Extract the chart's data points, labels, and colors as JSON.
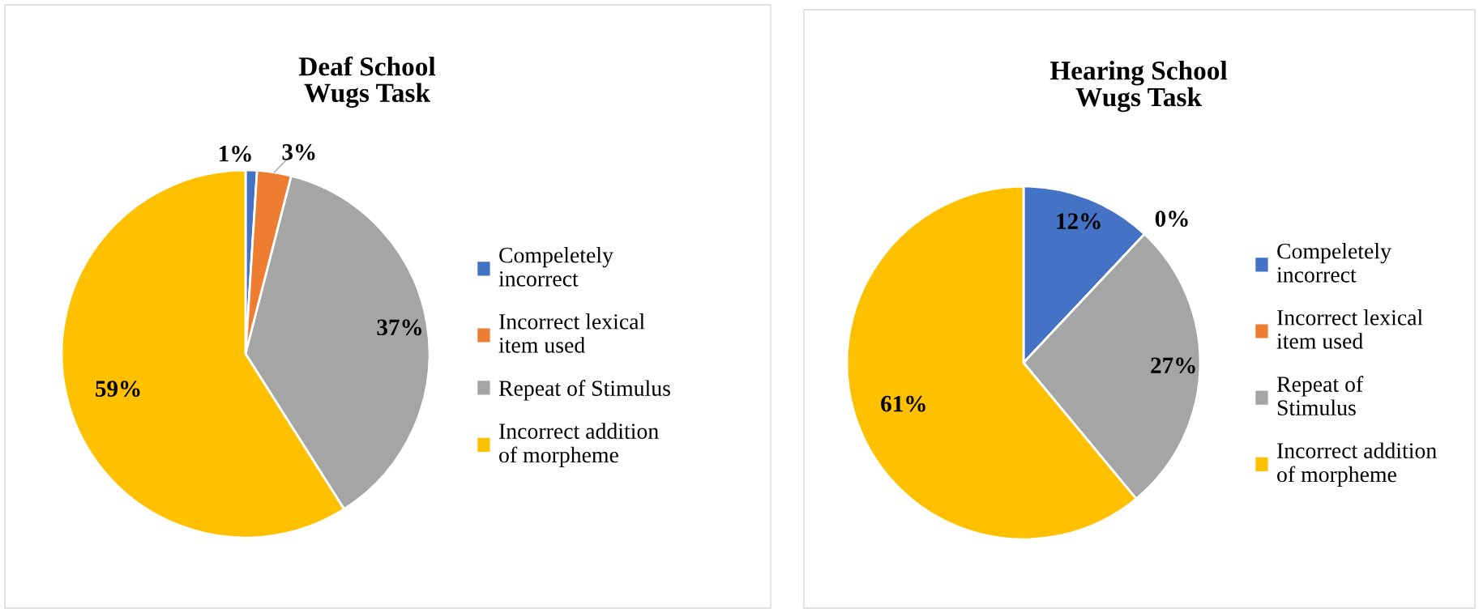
{
  "chart_data": [
    {
      "type": "pie",
      "title": "Deaf School\nWugs Task",
      "categories": [
        "Compeletely\nincorrect",
        "Incorrect lexical\nitem used",
        "Repeat of Stimulus",
        "Incorrect addition\nof morpheme"
      ],
      "values": [
        1,
        3,
        37,
        59
      ],
      "value_labels": [
        "1%",
        "3%",
        "37%",
        "59%"
      ],
      "colors": [
        "#4472c4",
        "#ed7d31",
        "#a5a5a5",
        "#ffc000"
      ],
      "legend": "right"
    },
    {
      "type": "pie",
      "title": "Hearing School\nWugs Task",
      "categories": [
        "Compeletely\nincorrect",
        "Incorrect lexical\nitem used",
        "Repeat of\nStimulus",
        "Incorrect addition\nof morpheme"
      ],
      "values": [
        12,
        0,
        27,
        61
      ],
      "value_labels": [
        "12%",
        "0%",
        "27%",
        "61%"
      ],
      "colors": [
        "#4472c4",
        "#ed7d31",
        "#a5a5a5",
        "#ffc000"
      ],
      "legend": "right"
    }
  ]
}
